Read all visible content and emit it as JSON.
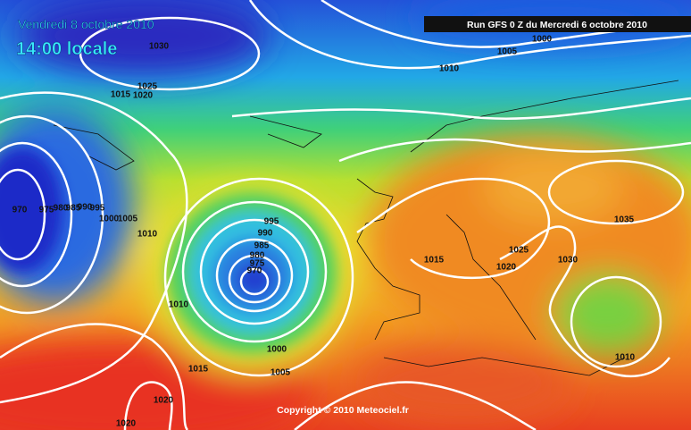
{
  "header": {
    "date": "Vendredi 8 octobre 2010",
    "time": "14:00 locale",
    "run": "Run GFS 0 Z du Mercredi 6 octobre 2010"
  },
  "isobar_labels": [
    1030,
    1025,
    1020,
    1015,
    970,
    975,
    980,
    985,
    990,
    995,
    1000,
    1005,
    1010,
    1010,
    1015,
    1020,
    1020,
    995,
    990,
    985,
    980,
    975,
    970,
    1000,
    1005,
    1000,
    1005,
    1010,
    1015,
    1020,
    1025,
    1030,
    1035,
    1010
  ],
  "footer": {
    "copyright": "Copyright © 2010 Meteociel.fr"
  }
}
